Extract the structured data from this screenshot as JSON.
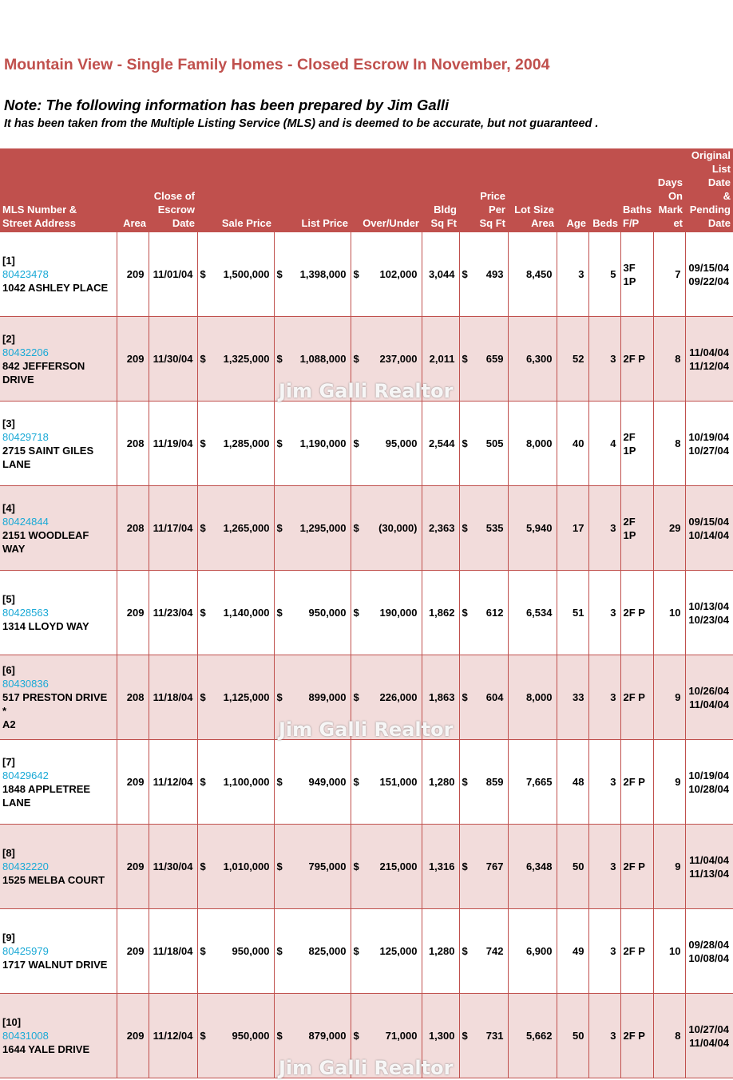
{
  "title": "Mountain View - Single Family Homes - Closed Escrow In November, 2004",
  "note": "Note:  The following information has been prepared by Jim Galli",
  "disclaimer": "It has been taken from the Multiple Listing Service (MLS) and is deemed to be accurate, but not guaranteed .",
  "watermark": "Jim Galli Realtor",
  "currency_symbol": "$",
  "colors": {
    "header_bg": "#c0504d",
    "title": "#c0504d",
    "stripe": "#f2dcdb",
    "link": "#1aa9d6"
  },
  "headers": {
    "mls": [
      "MLS Number &",
      "Street Address"
    ],
    "area": [
      "Area"
    ],
    "close": [
      "Close of",
      "Escrow",
      "Date"
    ],
    "sale": [
      "Sale Price"
    ],
    "list": [
      "List Price"
    ],
    "over": [
      "Over/Under"
    ],
    "bldg": [
      "Bldg",
      "Sq Ft"
    ],
    "ppsf": [
      "Price",
      "Per",
      "Sq Ft"
    ],
    "lot": [
      "Lot Size",
      "Area"
    ],
    "age": [
      "Age"
    ],
    "beds": [
      "Beds"
    ],
    "baths": [
      "Baths",
      "F/P"
    ],
    "dom": [
      "Days",
      "On",
      "Mark",
      "et"
    ],
    "orig": [
      "Original",
      "List Date",
      "&",
      "Pending",
      "Date"
    ]
  },
  "rows": [
    {
      "index": "[1]",
      "mls": "80423478",
      "address": [
        "1042 ASHLEY PLACE"
      ],
      "area": "209",
      "close_date": "11/01/04",
      "sale_price": "1,500,000",
      "list_price": "1,398,000",
      "over_under": "102,000",
      "bldg_sqft": "3,044",
      "price_per_sqft": "493",
      "lot_size": "8,450",
      "age": "3",
      "beds": "5",
      "baths": "3F 1P",
      "dom": "7",
      "list_date": "09/15/04",
      "pending_date": "09/22/04"
    },
    {
      "index": "[2]",
      "mls": "80432206",
      "address": [
        "842 JEFFERSON",
        "DRIVE"
      ],
      "area": "209",
      "close_date": "11/30/04",
      "sale_price": "1,325,000",
      "list_price": "1,088,000",
      "over_under": "237,000",
      "bldg_sqft": "2,011",
      "price_per_sqft": "659",
      "lot_size": "6,300",
      "age": "52",
      "beds": "3",
      "baths": "2F P",
      "dom": "8",
      "list_date": "11/04/04",
      "pending_date": "11/12/04"
    },
    {
      "index": "[3]",
      "mls": "80429718",
      "address": [
        "2715 SAINT GILES",
        "LANE"
      ],
      "area": "208",
      "close_date": "11/19/04",
      "sale_price": "1,285,000",
      "list_price": "1,190,000",
      "over_under": "95,000",
      "bldg_sqft": "2,544",
      "price_per_sqft": "505",
      "lot_size": "8,000",
      "age": "40",
      "beds": "4",
      "baths": "2F 1P",
      "dom": "8",
      "list_date": "10/19/04",
      "pending_date": "10/27/04"
    },
    {
      "index": "[4]",
      "mls": "80424844",
      "address": [
        "2151 WOODLEAF",
        "WAY"
      ],
      "area": "208",
      "close_date": "11/17/04",
      "sale_price": "1,265,000",
      "list_price": "1,295,000",
      "over_under": "(30,000)",
      "bldg_sqft": "2,363",
      "price_per_sqft": "535",
      "lot_size": "5,940",
      "age": "17",
      "beds": "3",
      "baths": "2F 1P",
      "dom": "29",
      "list_date": "09/15/04",
      "pending_date": "10/14/04"
    },
    {
      "index": "[5]",
      "mls": "80428563",
      "address": [
        "1314 LLOYD WAY"
      ],
      "area": "209",
      "close_date": "11/23/04",
      "sale_price": "1,140,000",
      "list_price": "950,000",
      "over_under": "190,000",
      "bldg_sqft": "1,862",
      "price_per_sqft": "612",
      "lot_size": "6,534",
      "age": "51",
      "beds": "3",
      "baths": "2F P",
      "dom": "10",
      "list_date": "10/13/04",
      "pending_date": "10/23/04"
    },
    {
      "index": "[6]",
      "mls": "80430836",
      "address": [
        "517 PRESTON DRIVE *",
        "A2"
      ],
      "area": "208",
      "close_date": "11/18/04",
      "sale_price": "1,125,000",
      "list_price": "899,000",
      "over_under": "226,000",
      "bldg_sqft": "1,863",
      "price_per_sqft": "604",
      "lot_size": "8,000",
      "age": "33",
      "beds": "3",
      "baths": "2F P",
      "dom": "9",
      "list_date": "10/26/04",
      "pending_date": "11/04/04"
    },
    {
      "index": "[7]",
      "mls": "80429642",
      "address": [
        "1848 APPLETREE",
        "LANE"
      ],
      "area": "209",
      "close_date": "11/12/04",
      "sale_price": "1,100,000",
      "list_price": "949,000",
      "over_under": "151,000",
      "bldg_sqft": "1,280",
      "price_per_sqft": "859",
      "lot_size": "7,665",
      "age": "48",
      "beds": "3",
      "baths": "2F P",
      "dom": "9",
      "list_date": "10/19/04",
      "pending_date": "10/28/04"
    },
    {
      "index": "[8]",
      "mls": "80432220",
      "address": [
        "1525 MELBA COURT"
      ],
      "area": "209",
      "close_date": "11/30/04",
      "sale_price": "1,010,000",
      "list_price": "795,000",
      "over_under": "215,000",
      "bldg_sqft": "1,316",
      "price_per_sqft": "767",
      "lot_size": "6,348",
      "age": "50",
      "beds": "3",
      "baths": "2F P",
      "dom": "9",
      "list_date": "11/04/04",
      "pending_date": "11/13/04"
    },
    {
      "index": "[9]",
      "mls": "80425979",
      "address": [
        "1717 WALNUT DRIVE"
      ],
      "area": "209",
      "close_date": "11/18/04",
      "sale_price": "950,000",
      "list_price": "825,000",
      "over_under": "125,000",
      "bldg_sqft": "1,280",
      "price_per_sqft": "742",
      "lot_size": "6,900",
      "age": "49",
      "beds": "3",
      "baths": "2F P",
      "dom": "10",
      "list_date": "09/28/04",
      "pending_date": "10/08/04"
    },
    {
      "index": "[10]",
      "mls": "80431008",
      "address": [
        "1644 YALE DRIVE"
      ],
      "area": "209",
      "close_date": "11/12/04",
      "sale_price": "950,000",
      "list_price": "879,000",
      "over_under": "71,000",
      "bldg_sqft": "1,300",
      "price_per_sqft": "731",
      "lot_size": "5,662",
      "age": "50",
      "beds": "3",
      "baths": "2F P",
      "dom": "8",
      "list_date": "10/27/04",
      "pending_date": "11/04/04"
    }
  ]
}
